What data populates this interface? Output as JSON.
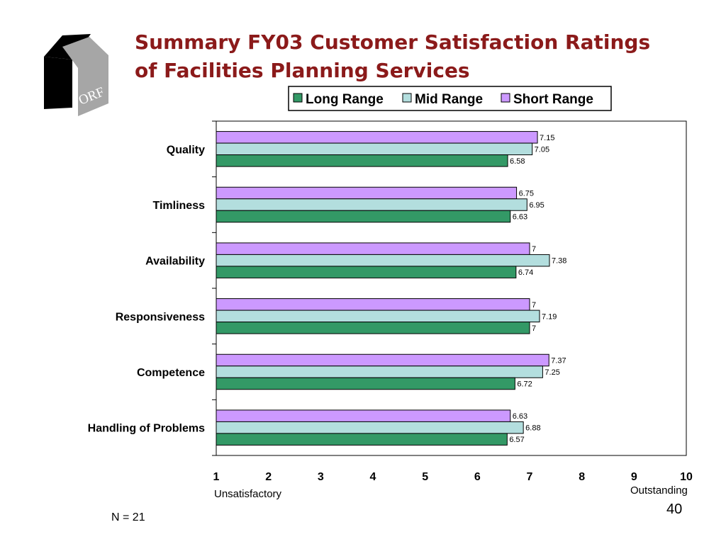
{
  "title": {
    "line1": "Summary  FY03 Customer Satisfaction Ratings",
    "line2": "of Facilities Planning Services"
  },
  "logo": {
    "text": "ORF",
    "icon": "orf-logo-icon"
  },
  "footer": {
    "n_label": "N = 21",
    "page_number": "40"
  },
  "chart_data": {
    "type": "bar",
    "orientation": "horizontal",
    "categories": [
      "Quality",
      "Timliness",
      "Availability",
      "Responsiveness",
      "Competence",
      "Handling of Problems"
    ],
    "series": [
      {
        "name": "Long Range",
        "color": "#339966",
        "values": [
          6.58,
          6.63,
          6.74,
          7,
          6.72,
          6.57
        ]
      },
      {
        "name": "Mid Range",
        "color": "#b3dede",
        "values": [
          7.05,
          6.95,
          7.38,
          7.19,
          7.25,
          6.88
        ]
      },
      {
        "name": "Short Range",
        "color": "#cc99ff",
        "values": [
          7.15,
          6.75,
          7,
          7,
          7.37,
          6.63
        ]
      }
    ],
    "xlim": [
      1,
      10
    ],
    "xticks": [
      "1",
      "2",
      "3",
      "4",
      "5",
      "6",
      "7",
      "8",
      "9",
      "10"
    ],
    "xlabel_left": "Unsatisfactory",
    "xlabel_right": "Outstanding",
    "legend_position": "top-right",
    "grid": false
  }
}
